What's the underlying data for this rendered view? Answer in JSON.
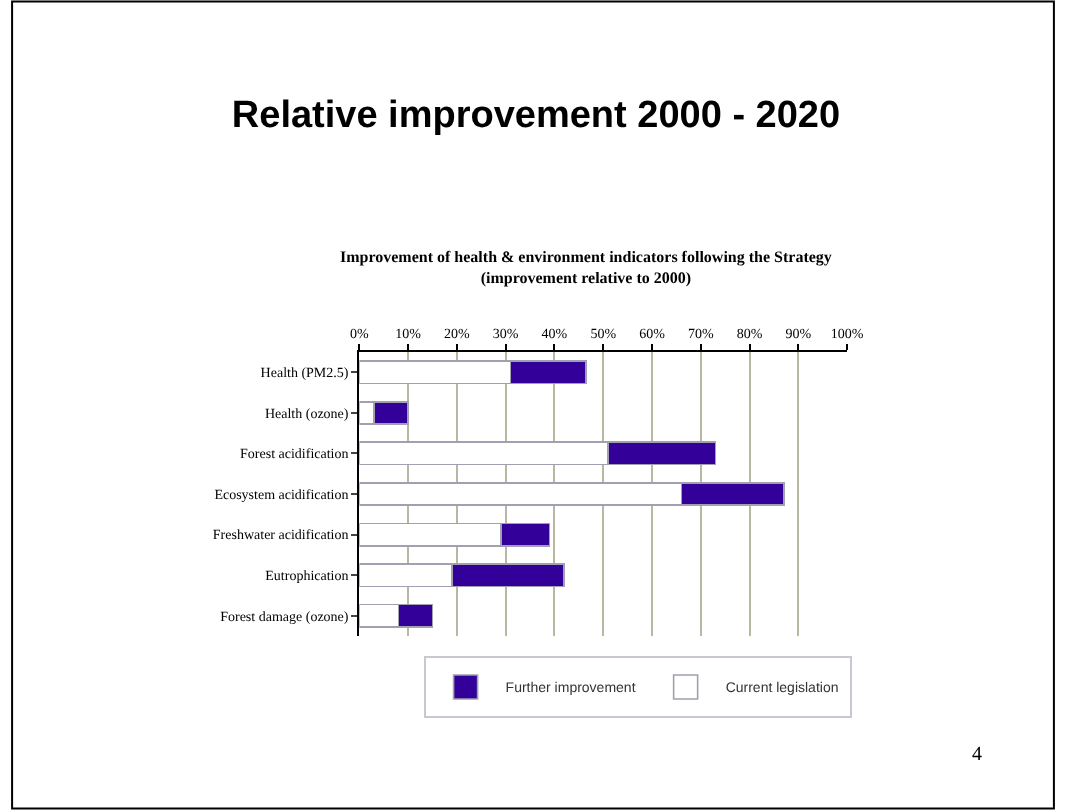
{
  "chart_data": {
    "type": "bar",
    "orientation": "horizontal",
    "stacked": true,
    "title": "Relative improvement 2000 - 2020",
    "subtitle": "Improvement of health & environment indicators following the Strategy\n(improvement relative to 2000)",
    "categories": [
      "Health (PM2.5)",
      "Health (ozone)",
      "Forest acidification",
      "Ecosystem acidification",
      "Freshwater acidification",
      "Eutrophication",
      "Forest damage (ozone)"
    ],
    "series": [
      {
        "name": "Current legislation",
        "color": "#ffffff",
        "values": [
          31,
          3,
          51,
          66,
          29,
          19,
          8
        ]
      },
      {
        "name": "Further improvement",
        "color": "#330099",
        "values": [
          15.5,
          7,
          22,
          21,
          10,
          23,
          7
        ]
      }
    ],
    "xlim": [
      0,
      100
    ],
    "xticks": [
      {
        "value": 0,
        "label": "0%"
      },
      {
        "value": 10,
        "label": "10%"
      },
      {
        "value": 20,
        "label": "20%"
      },
      {
        "value": 30,
        "label": "30%"
      },
      {
        "value": 40,
        "label": "40%"
      },
      {
        "value": 50,
        "label": "50%"
      },
      {
        "value": 60,
        "label": "60%"
      },
      {
        "value": 70,
        "label": "70%"
      },
      {
        "value": 80,
        "label": "80%"
      },
      {
        "value": 90,
        "label": "90%"
      },
      {
        "value": 100,
        "label": "100%"
      }
    ],
    "grid": "x",
    "legend": "bottom",
    "annotations": [
      "4"
    ]
  }
}
